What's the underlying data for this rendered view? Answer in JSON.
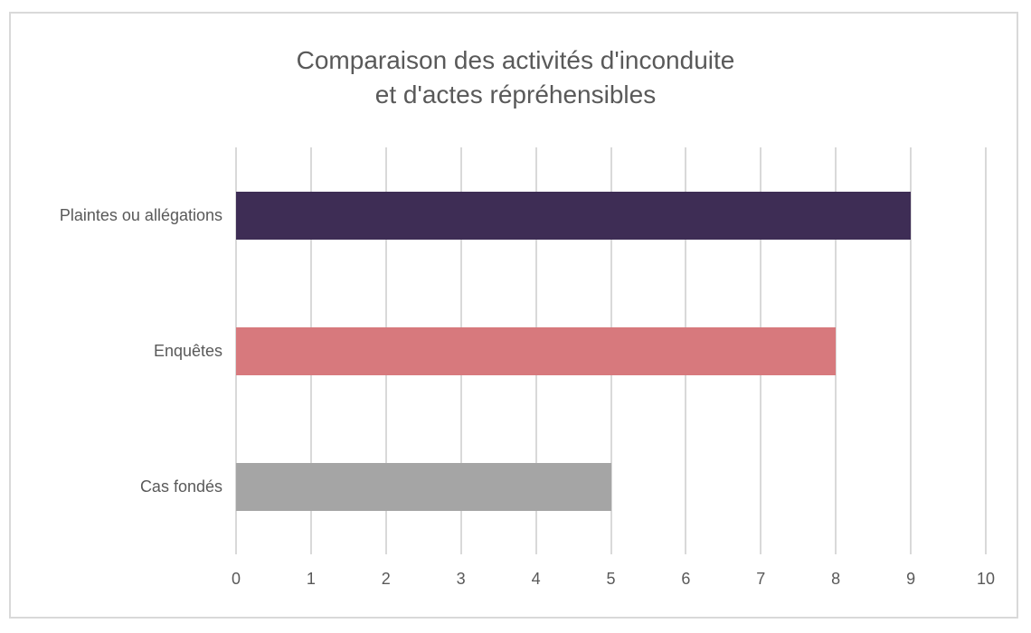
{
  "chart": {
    "title_lines": [
      "Comparaison des activités d'inconduite",
      "et d'actes répréhensibles"
    ]
  },
  "chart_data": {
    "type": "bar",
    "orientation": "horizontal",
    "title": "Comparaison des activités d'inconduite et d'actes répréhensibles",
    "categories": [
      "Plaintes ou allégations",
      "Enquêtes",
      "Cas fondés"
    ],
    "values": [
      9,
      8,
      5
    ],
    "bar_colors": [
      "#3E2D55",
      "#D7797D",
      "#A5A5A5"
    ],
    "xlabel": "",
    "ylabel": "",
    "xlim": [
      0,
      10
    ],
    "xticks": [
      0,
      1,
      2,
      3,
      4,
      5,
      6,
      7,
      8,
      9,
      10
    ],
    "grid": true,
    "legend": null,
    "colors": {
      "gridline": "#D9D9D9",
      "frame_border": "#D9D9D9",
      "text": "#595959",
      "background": "#FFFFFF"
    }
  }
}
